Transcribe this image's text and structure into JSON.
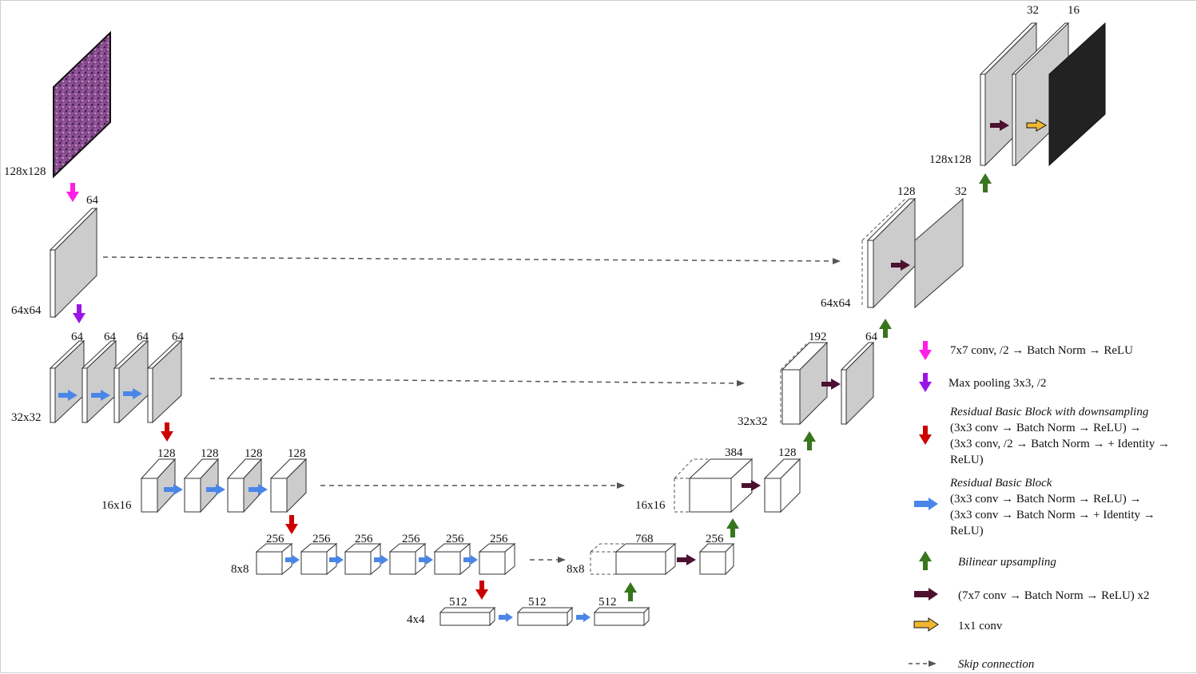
{
  "labels": {
    "input_size": "128x128",
    "s64": "64x64",
    "s32": "32x32",
    "s16": "16x16",
    "s8": "8x8",
    "s4": "4x4",
    "dec_s8": "8x8",
    "dec_s16": "16x16",
    "dec_s32": "32x32",
    "dec_s64": "64x64",
    "dec_s128": "128x128"
  },
  "channels": {
    "stem": "64",
    "enc32": [
      "64",
      "64",
      "64",
      "64"
    ],
    "enc16": [
      "128",
      "128",
      "128",
      "128"
    ],
    "enc8": [
      "256",
      "256",
      "256",
      "256",
      "256",
      "256"
    ],
    "enc4": [
      "512",
      "512",
      "512"
    ],
    "dec8_concat": "768",
    "dec8_out": "256",
    "dec16_concat": "384",
    "dec16_out": "128",
    "dec32_concat": "192",
    "dec32_out": "64",
    "dec64_concat": "128",
    "dec64_out": "32",
    "dec128_a": "32",
    "dec128_b": "16"
  },
  "legend": [
    {
      "icon": "magenta-down-arrow-icon",
      "lines": [
        "7x7 conv, /2 → Batch Norm → ReLU"
      ],
      "italic_title": false
    },
    {
      "icon": "purple-down-arrow-icon",
      "lines": [
        "Max pooling 3x3, /2"
      ],
      "italic_title": false
    },
    {
      "icon": "red-down-arrow-icon",
      "title": "Residual Basic Block with downsampling",
      "lines": [
        "(3x3 conv → Batch Norm → ReLU) →",
        "(3x3 conv, /2 → Batch Norm → + Identity →",
        "ReLU)"
      ],
      "italic_title": true
    },
    {
      "icon": "blue-right-arrow-icon",
      "title": "Residual Basic Block",
      "lines": [
        "(3x3 conv → Batch Norm → ReLU) →",
        "(3x3 conv → Batch Norm → + Identity →",
        "ReLU)"
      ],
      "italic_title": true
    },
    {
      "icon": "green-up-arrow-icon",
      "title": "Bilinear upsampling",
      "lines": [],
      "italic_title": true
    },
    {
      "icon": "maroon-right-arrow-icon",
      "lines": [
        "(7x7 conv → Batch Norm → ReLU) x2"
      ],
      "italic_title": false
    },
    {
      "icon": "orange-right-arrow-icon",
      "lines": [
        "1x1 conv"
      ],
      "italic_title": false
    },
    {
      "icon": "dashed-arrow-icon",
      "title": "Skip connection",
      "lines": [],
      "italic_title": true
    }
  ],
  "colors": {
    "magenta": "#ff1ee6",
    "purple": "#9b16e6",
    "red": "#cc0000",
    "blue": "#4a86e8",
    "green": "#38761d",
    "maroon": "#4c1130",
    "orange": "#f1b731",
    "gray_face": "#cccccc",
    "output": "#222222"
  }
}
